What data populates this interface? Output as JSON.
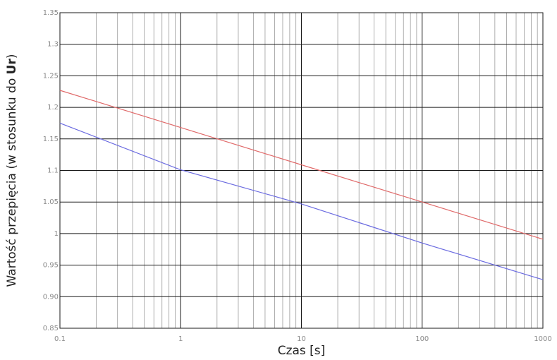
{
  "chart_data": {
    "type": "line",
    "title": "",
    "xlabel": "Czas [s]",
    "ylabel": {
      "prefix": "Wartość przepięcia (w stosunku do ",
      "bold": "Ur",
      "suffix": ")"
    },
    "x_scale": "log",
    "xlim": [
      0.1,
      1000
    ],
    "ylim": [
      0.85,
      1.35
    ],
    "grid": true,
    "legend": "none",
    "x_ticks": [
      {
        "value": 0.1,
        "label": "0.1"
      },
      {
        "value": 1,
        "label": "1"
      },
      {
        "value": 10,
        "label": "10"
      },
      {
        "value": 100,
        "label": "100"
      },
      {
        "value": 1000,
        "label": "1000"
      }
    ],
    "y_ticks": [
      {
        "value": 0.85,
        "label": "0.85"
      },
      {
        "value": 0.9,
        "label": "0.90"
      },
      {
        "value": 0.95,
        "label": "0.95"
      },
      {
        "value": 1.0,
        "label": "1"
      },
      {
        "value": 1.05,
        "label": "1.05"
      },
      {
        "value": 1.1,
        "label": "1.1"
      },
      {
        "value": 1.15,
        "label": "1.15"
      },
      {
        "value": 1.2,
        "label": "1.2"
      },
      {
        "value": 1.25,
        "label": "1.25"
      },
      {
        "value": 1.3,
        "label": "1.3"
      },
      {
        "value": 1.35,
        "label": "1.35"
      }
    ],
    "series": [
      {
        "color": "#e06a6a",
        "x": [
          0.1,
          1,
          10,
          100,
          1000
        ],
        "y": [
          1.227,
          1.168,
          1.109,
          1.05,
          0.991
        ]
      },
      {
        "color": "#6a6ae0",
        "x": [
          0.1,
          1,
          10,
          100,
          1000
        ],
        "y": [
          1.175,
          1.101,
          1.047,
          0.985,
          0.927
        ]
      }
    ]
  }
}
